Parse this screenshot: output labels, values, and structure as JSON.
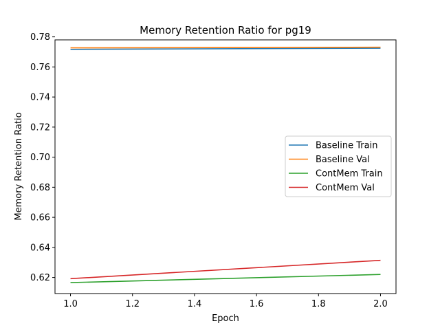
{
  "chart_data": {
    "type": "line",
    "title": "Memory Retention Ratio for pg19",
    "xlabel": "Epoch",
    "ylabel": "Memory Retention Ratio",
    "x": [
      1.0,
      2.0
    ],
    "xlim": [
      0.95,
      2.05
    ],
    "ylim": [
      0.6093,
      0.778
    ],
    "xticks": [
      1.0,
      1.2,
      1.4,
      1.6,
      1.8,
      2.0
    ],
    "xtick_labels": [
      "1.0",
      "1.2",
      "1.4",
      "1.6",
      "1.8",
      "2.0"
    ],
    "yticks": [
      0.62,
      0.64,
      0.66,
      0.68,
      0.7,
      0.72,
      0.74,
      0.76,
      0.78
    ],
    "ytick_labels": [
      "0.62",
      "0.64",
      "0.66",
      "0.68",
      "0.70",
      "0.72",
      "0.74",
      "0.76",
      "0.78"
    ],
    "grid": false,
    "legend_position": "center-right",
    "series": [
      {
        "name": "Baseline Train",
        "color": "#1f77b4",
        "values": [
          0.7717,
          0.7725
        ]
      },
      {
        "name": "Baseline Val",
        "color": "#ff7f0e",
        "values": [
          0.7727,
          0.7731
        ]
      },
      {
        "name": "ContMem Train",
        "color": "#2ca02c",
        "values": [
          0.6166,
          0.622
        ]
      },
      {
        "name": "ContMem Val",
        "color": "#d62728",
        "values": [
          0.6192,
          0.6314
        ]
      }
    ]
  }
}
